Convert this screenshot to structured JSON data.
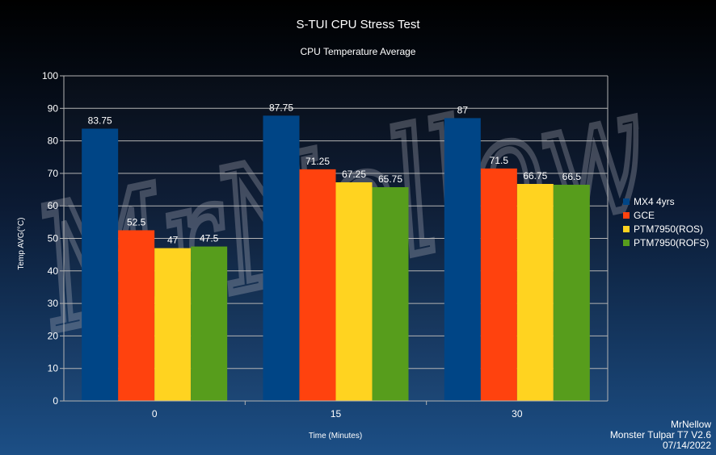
{
  "chart_data": {
    "type": "bar",
    "title": "S-TUI CPU Stress Test",
    "subtitle": "CPU Temperature Average",
    "xlabel": "Time (Minutes)",
    "ylabel": "Temp AVG(°C)",
    "categories": [
      "0",
      "15",
      "30"
    ],
    "ylim": [
      0,
      100
    ],
    "yticks": [
      "0",
      "10",
      "20",
      "30",
      "40",
      "50",
      "60",
      "70",
      "80",
      "90",
      "100"
    ],
    "grid": true,
    "legend_position": "right",
    "series": [
      {
        "name": "MX4 4yrs",
        "color": "#004586",
        "values": [
          83.75,
          87.75,
          87
        ],
        "labels": [
          "83.75",
          "87.75",
          "87"
        ]
      },
      {
        "name": "GCE",
        "color": "#ff420e",
        "values": [
          52.5,
          71.25,
          71.5
        ],
        "labels": [
          "52.5",
          "71.25",
          "71.5"
        ]
      },
      {
        "name": "PTM7950(ROS)",
        "color": "#ffd320",
        "values": [
          47,
          67.25,
          66.75
        ],
        "labels": [
          "47",
          "67.25",
          "66.75"
        ]
      },
      {
        "name": "PTM7950(ROFS)",
        "color": "#579d1c",
        "values": [
          47.5,
          65.75,
          66.5
        ],
        "labels": [
          "47.5",
          "65.75",
          "66.5"
        ]
      }
    ]
  },
  "credits": {
    "author": "MrNellow",
    "system": "Monster Tulpar T7 V2.6",
    "date": "07/14/2022"
  },
  "watermark": "MrNellow"
}
